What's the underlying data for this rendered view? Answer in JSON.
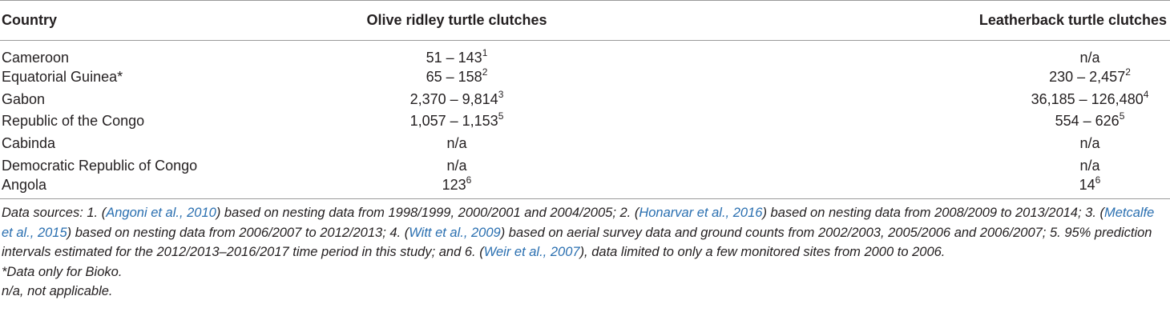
{
  "table": {
    "headers": [
      "Country",
      "Olive ridley turtle clutches",
      "Leatherback turtle clutches"
    ],
    "rows": [
      {
        "country": "Cameroon",
        "olive": "51 – 143",
        "olive_sup": "1",
        "leather": "n/a",
        "leather_sup": ""
      },
      {
        "country": "Equatorial Guinea*",
        "olive": "65 – 158",
        "olive_sup": "2",
        "leather": "230 – 2,457",
        "leather_sup": "2"
      },
      {
        "country": "Gabon",
        "olive": "2,370 – 9,814",
        "olive_sup": "3",
        "leather": "36,185 – 126,480",
        "leather_sup": "4"
      },
      {
        "country": "Republic of the Congo",
        "olive": "1,057 – 1,153",
        "olive_sup": "5",
        "leather": "554 – 626",
        "leather_sup": "5"
      },
      {
        "country": "Cabinda",
        "olive": "n/a",
        "olive_sup": "",
        "leather": "n/a",
        "leather_sup": ""
      },
      {
        "country": "Democratic Republic of Congo",
        "olive": "n/a",
        "olive_sup": "",
        "leather": "n/a",
        "leather_sup": ""
      },
      {
        "country": "Angola",
        "olive": "123",
        "olive_sup": "6",
        "leather": "14",
        "leather_sup": "6"
      }
    ]
  },
  "notes": {
    "s1_pre": "Data sources: 1. (",
    "s1_ref": "Angoni et al., 2010",
    "s1_post": ") based on nesting data from 1998/1999, 2000/2001 and 2004/2005; 2. (",
    "s2_ref": "Honarvar et al., 2016",
    "s2_post": ") based on nesting data from 2008/2009 to 2013/2014; 3. (",
    "s3_ref": "Metcalfe et al., 2015",
    "s3_post": ") based on nesting data from 2006/2007 to 2012/2013; 4. (",
    "s4_ref": "Witt et al., 2009",
    "s4_post": ") based on aerial survey data and ground counts from 2002/2003, 2005/2006 and 2006/2007; 5. 95% prediction intervals estimated for the 2012/2013–2016/2017 time period in this study; and 6. (",
    "s6_ref": "Weir et al., 2007",
    "s6_post": "), data limited to only a few monitored sites from 2000 to 2006.",
    "bioko": "*Data only for Bioko.",
    "na": "n/a, not applicable.",
    "link_color": "#2a6fb0"
  }
}
